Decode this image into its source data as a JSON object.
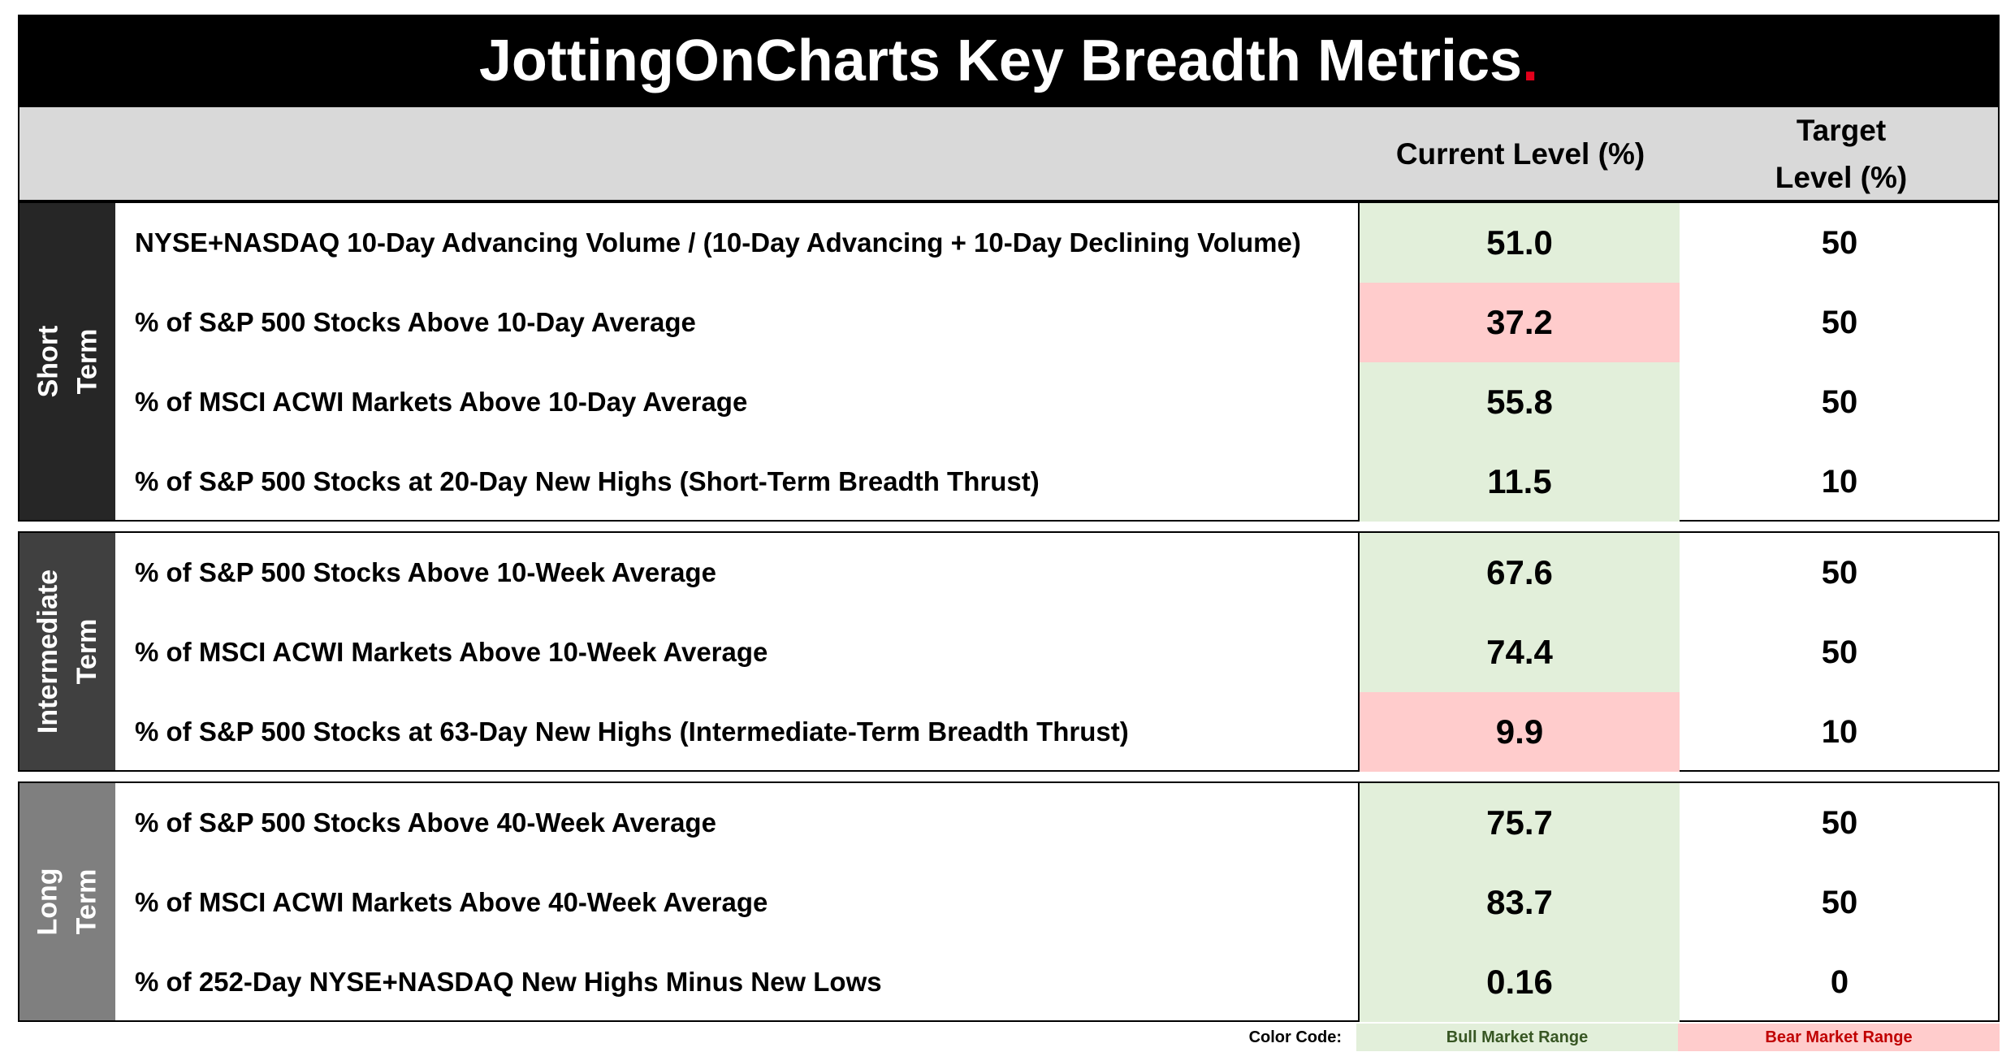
{
  "title": {
    "text": "JottingOnCharts Key Breadth Metrics",
    "dot": "."
  },
  "header": {
    "current_level": "Current Level (%)",
    "target_level_line1": "Target",
    "target_level_line2": "Level (%)"
  },
  "colors": {
    "bull": "#e2efda",
    "bear": "#ffcccc",
    "short_term_side": "#262626",
    "intermediate_term_side": "#404040",
    "long_term_side": "#7f7f7f",
    "title_accent": "#e3001b"
  },
  "sections": [
    {
      "label_line1": "Short",
      "label_line2": "Term",
      "rows": [
        {
          "label": "NYSE+NASDAQ 10-Day Advancing Volume / (10-Day Advancing + 10-Day Declining Volume)",
          "current": "51.0",
          "target": "50",
          "status": "bull"
        },
        {
          "label": "% of S&P 500 Stocks Above 10-Day Average",
          "current": "37.2",
          "target": "50",
          "status": "bear"
        },
        {
          "label": "% of MSCI ACWI Markets Above 10-Day Average",
          "current": "55.8",
          "target": "50",
          "status": "bull"
        },
        {
          "label": "% of S&P 500 Stocks at 20-Day New Highs (Short-Term Breadth Thrust)",
          "current": "11.5",
          "target": "10",
          "status": "bull"
        }
      ]
    },
    {
      "label_line1": "Intermediate",
      "label_line2": "Term",
      "rows": [
        {
          "label": "% of S&P 500 Stocks Above 10-Week Average",
          "current": "67.6",
          "target": "50",
          "status": "bull"
        },
        {
          "label": "% of MSCI ACWI Markets Above 10-Week Average",
          "current": "74.4",
          "target": "50",
          "status": "bull"
        },
        {
          "label": "% of S&P 500 Stocks at 63-Day New Highs (Intermediate-Term Breadth Thrust)",
          "current": "9.9",
          "target": "10",
          "status": "bear"
        }
      ]
    },
    {
      "label_line1": "Long",
      "label_line2": "Term",
      "rows": [
        {
          "label": "% of S&P 500 Stocks Above 40-Week Average",
          "current": "75.7",
          "target": "50",
          "status": "bull"
        },
        {
          "label": "% of MSCI ACWI Markets Above 40-Week Average",
          "current": "83.7",
          "target": "50",
          "status": "bull"
        },
        {
          "label": "% of 252-Day NYSE+NASDAQ New Highs Minus New Lows",
          "current": "0.16",
          "target": "0",
          "status": "bull"
        }
      ]
    }
  ],
  "legend": {
    "label": "Color Code:",
    "bull": "Bull Market Range",
    "bear": "Bear Market Range"
  }
}
